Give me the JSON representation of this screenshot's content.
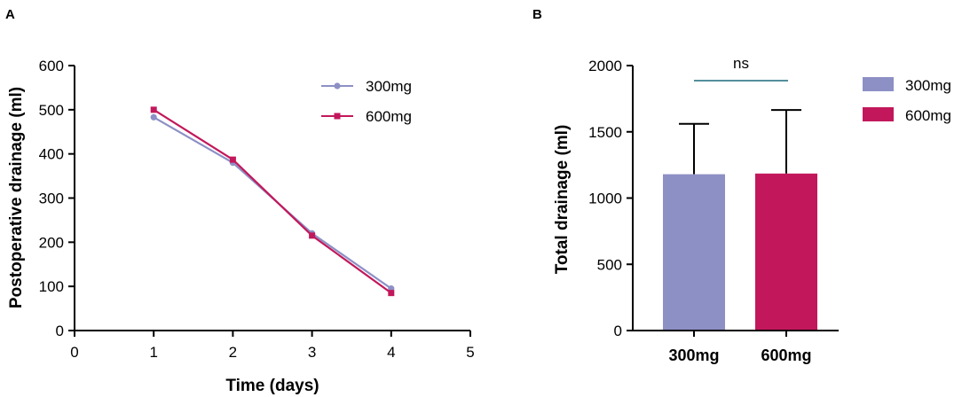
{
  "colors": {
    "s300": "#8d90c5",
    "s600": "#c2185b",
    "sig": "#1a6a7a",
    "axis": "#000000"
  },
  "chart_data": [
    {
      "panel": "A",
      "type": "line",
      "xlabel": "Time (days)",
      "ylabel": "Postoperative drainage (ml)",
      "xlim": [
        0,
        5
      ],
      "ylim": [
        0,
        600
      ],
      "xticks": [
        "0",
        "1",
        "2",
        "3",
        "4",
        "5"
      ],
      "yticks": [
        "0",
        "100",
        "200",
        "300",
        "400",
        "500",
        "600"
      ],
      "x": [
        1,
        2,
        3,
        4
      ],
      "series": [
        {
          "name": "300mg",
          "values": [
            483,
            380,
            220,
            95
          ],
          "marker": "circle"
        },
        {
          "name": "600mg",
          "values": [
            500,
            387,
            215,
            85
          ],
          "marker": "square"
        }
      ],
      "legend": [
        "300mg",
        "600mg"
      ]
    },
    {
      "panel": "B",
      "type": "bar",
      "ylabel": "Total drainage (ml)",
      "ylim": [
        0,
        2000
      ],
      "yticks": [
        "0",
        "500",
        "1000",
        "1500",
        "2000"
      ],
      "categories": [
        "300mg",
        "600mg"
      ],
      "values": [
        1180,
        1185
      ],
      "error_upper": [
        380,
        480
      ],
      "annotation": "ns",
      "legend": [
        "300mg",
        "600mg"
      ]
    }
  ]
}
